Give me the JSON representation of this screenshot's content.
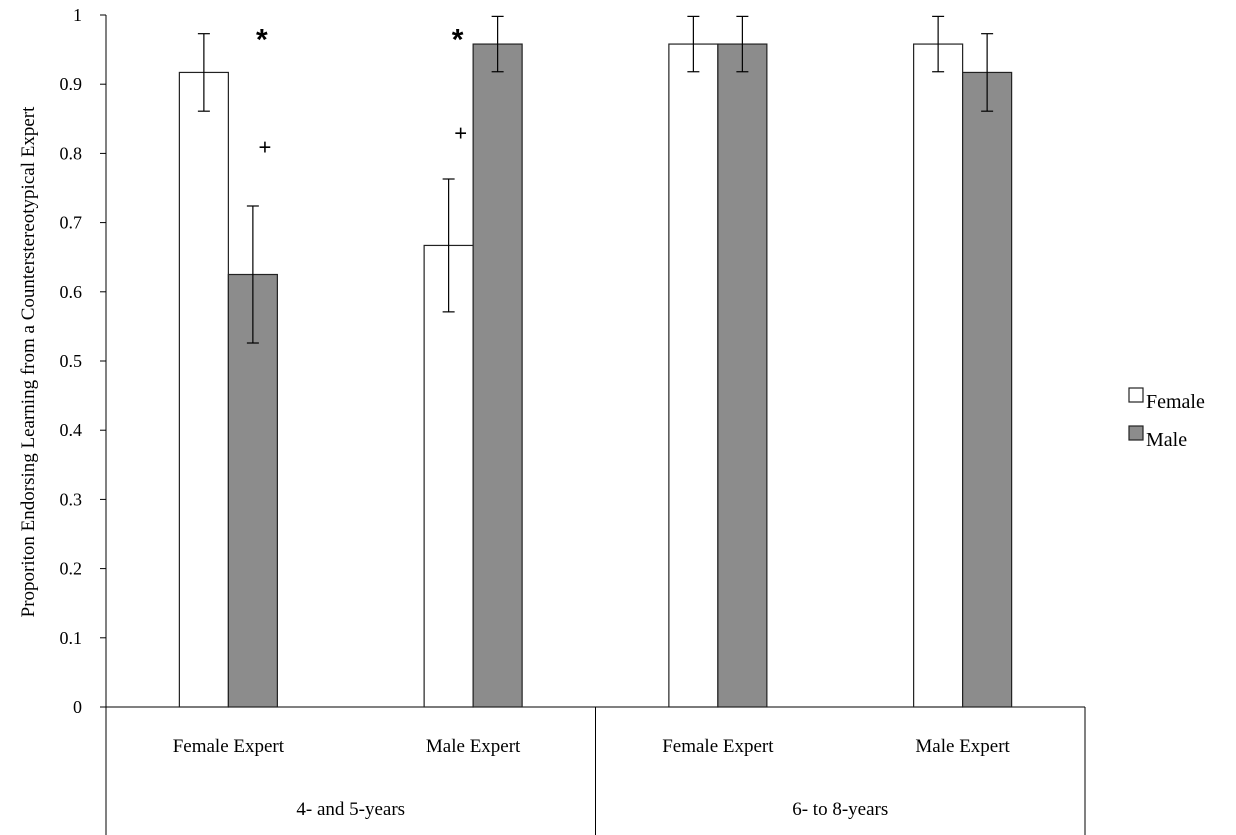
{
  "chart_data": {
    "type": "bar",
    "title": "",
    "xlabel": "",
    "ylabel": "Proporiton Endorsing Learning from a Counterstereotypical  Expert",
    "ylim": [
      0,
      1
    ],
    "yticks": [
      "0",
      "0.1",
      "0.2",
      "0.3",
      "0.4",
      "0.5",
      "0.6",
      "0.7",
      "0.8",
      "0.9",
      "1"
    ],
    "groups": [
      {
        "label": "4- and 5-years",
        "categories": [
          "Female Expert",
          "Male Expert"
        ]
      },
      {
        "label": "6- to 8-years",
        "categories": [
          "Female Expert",
          "Male Expert"
        ]
      }
    ],
    "categories": [
      "Female Expert",
      "Male Expert",
      "Female Expert",
      "Male Expert"
    ],
    "series": [
      {
        "name": "Female",
        "color": "#ffffff",
        "values": [
          0.917,
          0.667,
          0.958,
          0.958
        ],
        "errors": [
          0.056,
          0.096,
          0.04,
          0.04
        ]
      },
      {
        "name": "Male",
        "color": "#8c8c8c",
        "values": [
          0.625,
          0.958,
          0.958,
          0.917
        ],
        "errors": [
          0.099,
          0.04,
          0.04,
          0.056
        ]
      }
    ],
    "annotations": [
      {
        "text": "*",
        "category": 0,
        "series": 1,
        "y": 0.985
      },
      {
        "text": "+",
        "category": 0,
        "series": 1,
        "y": 0.81
      },
      {
        "text": "*",
        "category": 1,
        "series": 0,
        "y": 0.985
      },
      {
        "text": "+",
        "category": 1,
        "series": 0,
        "y": 0.83
      }
    ],
    "legend": {
      "position": "right",
      "entries": [
        "Female",
        "Male"
      ]
    },
    "grid": false
  }
}
